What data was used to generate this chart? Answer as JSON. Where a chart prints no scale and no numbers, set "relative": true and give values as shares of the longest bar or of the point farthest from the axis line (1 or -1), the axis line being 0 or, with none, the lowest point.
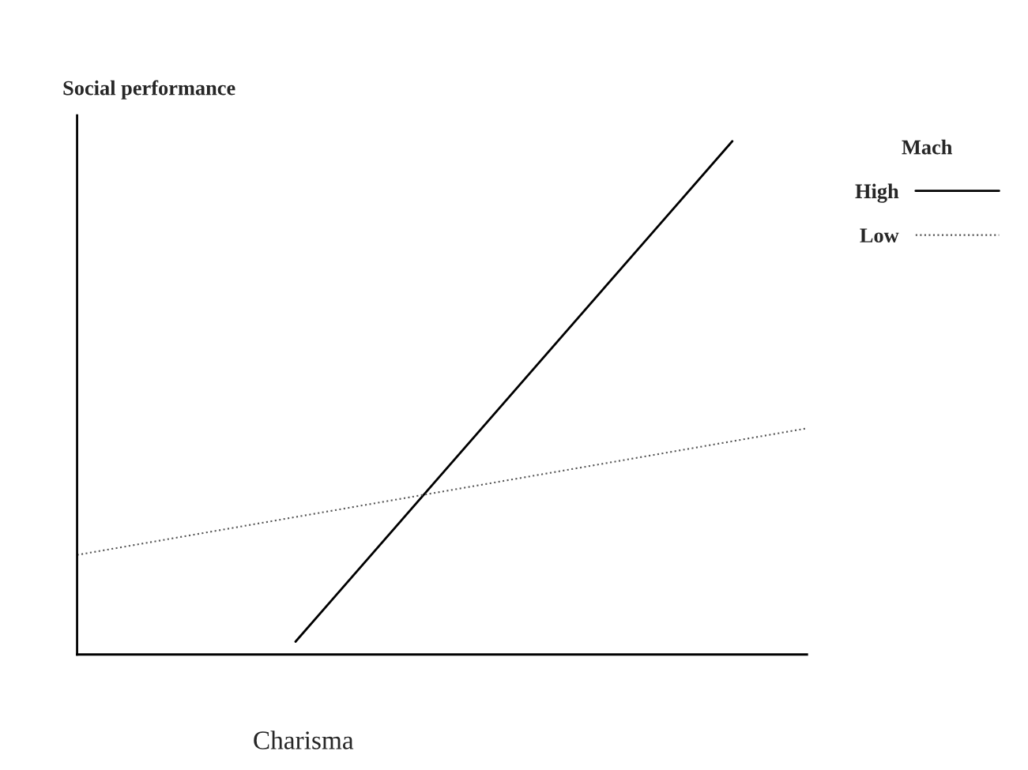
{
  "chart_data": {
    "type": "line",
    "relative": true,
    "xlabel": "Charisma",
    "ylabel": "Social performance",
    "legend_title": "Mach",
    "legend": "right",
    "categories": [
      null,
      null,
      null,
      null,
      null,
      null,
      null,
      null,
      null,
      null,
      null,
      null,
      null,
      null,
      null,
      null,
      null,
      null,
      null,
      null,
      null
    ],
    "series": [
      {
        "name": "High",
        "color": "#000000",
        "line_style": "solid",
        "values": [
          null,
          null,
          null,
          null,
          null,
          null,
          0.025,
          null,
          null,
          null,
          null,
          null,
          null,
          null,
          null,
          null,
          null,
          null,
          1,
          null,
          null
        ]
      },
      {
        "name": "Low",
        "color": "#555555",
        "line_style": "dotted",
        "values": [
          0.194,
          null,
          null,
          null,
          null,
          null,
          null,
          null,
          null,
          null,
          null,
          null,
          null,
          null,
          null,
          null,
          null,
          null,
          null,
          null,
          0.44
        ]
      }
    ]
  }
}
